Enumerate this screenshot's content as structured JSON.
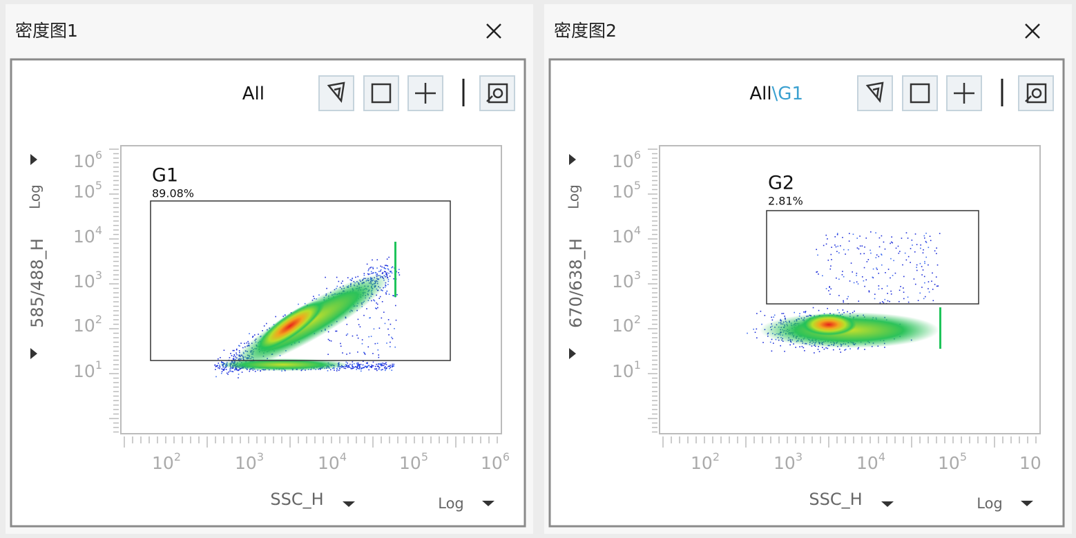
{
  "panels": [
    {
      "title": "密度图1",
      "path": [
        "All"
      ],
      "gate": {
        "name": "G1",
        "percent": "89.08%"
      },
      "y_axis": {
        "label": "585/488_H",
        "scale": "Log"
      },
      "x_axis": {
        "label": "SSC_H",
        "scale": "Log"
      },
      "y_ticks": [
        {
          "base": "10",
          "exp": "6"
        },
        {
          "base": "10",
          "exp": "5"
        },
        {
          "base": "10",
          "exp": "4"
        },
        {
          "base": "10",
          "exp": "3"
        },
        {
          "base": "10",
          "exp": "2"
        },
        {
          "base": "10",
          "exp": "1"
        }
      ],
      "x_ticks": [
        {
          "base": "10",
          "exp": "2"
        },
        {
          "base": "10",
          "exp": "3"
        },
        {
          "base": "10",
          "exp": "4"
        },
        {
          "base": "10",
          "exp": "5"
        },
        {
          "base": "10",
          "exp": "6"
        }
      ]
    },
    {
      "title": "密度图2",
      "path": [
        "All",
        "\\G1"
      ],
      "gate": {
        "name": "G2",
        "percent": "2.81%"
      },
      "y_axis": {
        "label": "670/638_H",
        "scale": "Log"
      },
      "x_axis": {
        "label": "SSC_H",
        "scale": "Log"
      },
      "y_ticks": [
        {
          "base": "10",
          "exp": "6"
        },
        {
          "base": "10",
          "exp": "5"
        },
        {
          "base": "10",
          "exp": "4"
        },
        {
          "base": "10",
          "exp": "3"
        },
        {
          "base": "10",
          "exp": "2"
        },
        {
          "base": "10",
          "exp": "1"
        }
      ],
      "x_ticks": [
        {
          "base": "10",
          "exp": "2"
        },
        {
          "base": "10",
          "exp": "3"
        },
        {
          "base": "10",
          "exp": "4"
        },
        {
          "base": "10",
          "exp": "5"
        },
        {
          "base": "10"
        }
      ]
    }
  ]
}
